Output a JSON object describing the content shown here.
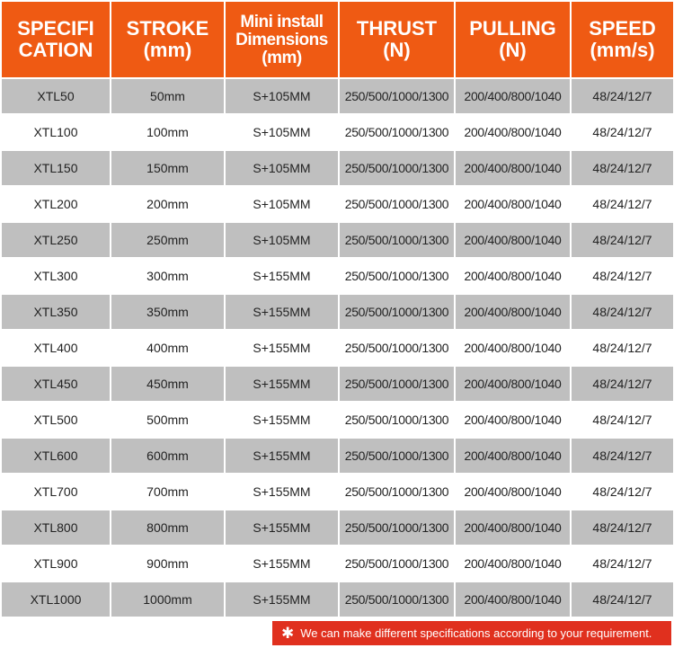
{
  "header": {
    "col1": [
      "SPECIFI",
      "CATION"
    ],
    "col2": [
      "STROKE",
      "(mm)"
    ],
    "col3": [
      "Mini install",
      "Dimensions",
      "(mm)"
    ],
    "col4": [
      "THRUST",
      "(N)"
    ],
    "col5": [
      "PULLING",
      "(N)"
    ],
    "col6": [
      "SPEED",
      "(mm/s)"
    ]
  },
  "rows": [
    {
      "spec": "XTL50",
      "stroke": "50mm",
      "install": "S+105MM",
      "thrust": "250/500/1000/1300",
      "pulling": "200/400/800/1040",
      "speed": "48/24/12/7"
    },
    {
      "spec": "XTL100",
      "stroke": "100mm",
      "install": "S+105MM",
      "thrust": "250/500/1000/1300",
      "pulling": "200/400/800/1040",
      "speed": "48/24/12/7"
    },
    {
      "spec": "XTL150",
      "stroke": "150mm",
      "install": "S+105MM",
      "thrust": "250/500/1000/1300",
      "pulling": "200/400/800/1040",
      "speed": "48/24/12/7"
    },
    {
      "spec": "XTL200",
      "stroke": "200mm",
      "install": "S+105MM",
      "thrust": "250/500/1000/1300",
      "pulling": "200/400/800/1040",
      "speed": "48/24/12/7"
    },
    {
      "spec": "XTL250",
      "stroke": "250mm",
      "install": "S+105MM",
      "thrust": "250/500/1000/1300",
      "pulling": "200/400/800/1040",
      "speed": "48/24/12/7"
    },
    {
      "spec": "XTL300",
      "stroke": "300mm",
      "install": "S+155MM",
      "thrust": "250/500/1000/1300",
      "pulling": "200/400/800/1040",
      "speed": "48/24/12/7"
    },
    {
      "spec": "XTL350",
      "stroke": "350mm",
      "install": "S+155MM",
      "thrust": "250/500/1000/1300",
      "pulling": "200/400/800/1040",
      "speed": "48/24/12/7"
    },
    {
      "spec": "XTL400",
      "stroke": "400mm",
      "install": "S+155MM",
      "thrust": "250/500/1000/1300",
      "pulling": "200/400/800/1040",
      "speed": "48/24/12/7"
    },
    {
      "spec": "XTL450",
      "stroke": "450mm",
      "install": "S+155MM",
      "thrust": "250/500/1000/1300",
      "pulling": "200/400/800/1040",
      "speed": "48/24/12/7"
    },
    {
      "spec": "XTL500",
      "stroke": "500mm",
      "install": "S+155MM",
      "thrust": "250/500/1000/1300",
      "pulling": "200/400/800/1040",
      "speed": "48/24/12/7"
    },
    {
      "spec": "XTL600",
      "stroke": "600mm",
      "install": "S+155MM",
      "thrust": "250/500/1000/1300",
      "pulling": "200/400/800/1040",
      "speed": "48/24/12/7"
    },
    {
      "spec": "XTL700",
      "stroke": "700mm",
      "install": "S+155MM",
      "thrust": "250/500/1000/1300",
      "pulling": "200/400/800/1040",
      "speed": "48/24/12/7"
    },
    {
      "spec": "XTL800",
      "stroke": "800mm",
      "install": "S+155MM",
      "thrust": "250/500/1000/1300",
      "pulling": "200/400/800/1040",
      "speed": "48/24/12/7"
    },
    {
      "spec": "XTL900",
      "stroke": "900mm",
      "install": "S+155MM",
      "thrust": "250/500/1000/1300",
      "pulling": "200/400/800/1040",
      "speed": "48/24/12/7"
    },
    {
      "spec": "XTL1000",
      "stroke": "1000mm",
      "install": "S+155MM",
      "thrust": "250/500/1000/1300",
      "pulling": "200/400/800/1040",
      "speed": "48/24/12/7"
    }
  ],
  "note": {
    "symbol": "✱",
    "text": "We can make different specifications according to your requirement."
  },
  "colors": {
    "header_bg": "#ef5a13",
    "row_odd_bg": "#bfbfbf",
    "row_even_bg": "#ffffff",
    "note_bg": "#e0301e"
  }
}
